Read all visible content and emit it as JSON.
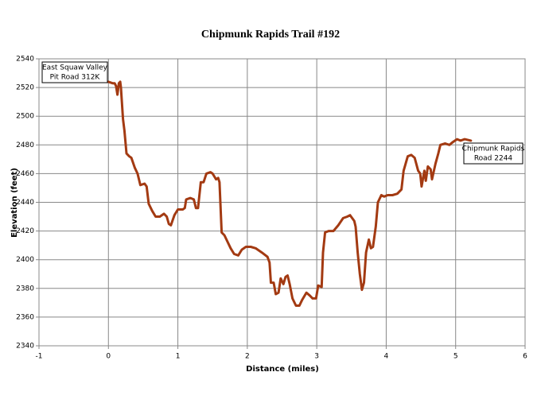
{
  "chart_data": {
    "type": "line",
    "title": "Chipmunk Rapids Trail #192",
    "x_label": "Distance (miles)",
    "y_label": "Elevation (feet)",
    "x": [
      0,
      0.06,
      0.09,
      0.11,
      0.13,
      0.15,
      0.17,
      0.18,
      0.21,
      0.23,
      0.26,
      0.3,
      0.33,
      0.38,
      0.42,
      0.46,
      0.52,
      0.55,
      0.58,
      0.63,
      0.68,
      0.74,
      0.8,
      0.84,
      0.87,
      0.9,
      0.95,
      1.0,
      1.07,
      1.1,
      1.12,
      1.18,
      1.23,
      1.26,
      1.29,
      1.33,
      1.37,
      1.41,
      1.47,
      1.5,
      1.55,
      1.58,
      1.6,
      1.63,
      1.67,
      1.72,
      1.76,
      1.81,
      1.87,
      1.92,
      1.98,
      2.05,
      2.12,
      2.21,
      2.29,
      2.32,
      2.34,
      2.38,
      2.41,
      2.45,
      2.48,
      2.52,
      2.55,
      2.58,
      2.61,
      2.65,
      2.7,
      2.75,
      2.79,
      2.85,
      2.9,
      2.94,
      2.99,
      3.02,
      3.07,
      3.09,
      3.12,
      3.17,
      3.24,
      3.31,
      3.38,
      3.44,
      3.48,
      3.54,
      3.56,
      3.59,
      3.62,
      3.65,
      3.68,
      3.71,
      3.75,
      3.78,
      3.81,
      3.85,
      3.88,
      3.93,
      3.97,
      4.02,
      4.09,
      4.16,
      4.22,
      4.25,
      4.31,
      4.36,
      4.41,
      4.46,
      4.49,
      4.51,
      4.55,
      4.57,
      4.6,
      4.64,
      4.66,
      4.71,
      4.75,
      4.78,
      4.85,
      4.91,
      4.96,
      5.02,
      5.07,
      5.13,
      5.22
    ],
    "values": [
      2524,
      2523,
      2523,
      2521,
      2515,
      2523,
      2524,
      2520,
      2498,
      2490,
      2474,
      2472,
      2471,
      2464,
      2460,
      2452,
      2453,
      2451,
      2439,
      2434,
      2430,
      2430,
      2432,
      2430,
      2425,
      2424,
      2431,
      2435,
      2435,
      2436,
      2442,
      2443,
      2442,
      2436,
      2436,
      2454,
      2454,
      2460,
      2461,
      2460,
      2456,
      2457,
      2454,
      2419,
      2417,
      2412,
      2408,
      2404,
      2403,
      2407,
      2409,
      2409,
      2408,
      2405,
      2402,
      2398,
      2384,
      2384,
      2376,
      2377,
      2387,
      2383,
      2388,
      2389,
      2383,
      2373,
      2368,
      2368,
      2372,
      2377,
      2375,
      2373,
      2373,
      2382,
      2381,
      2405,
      2419,
      2420,
      2420,
      2424,
      2429,
      2430,
      2431,
      2427,
      2423,
      2405,
      2390,
      2379,
      2384,
      2405,
      2414,
      2408,
      2409,
      2423,
      2440,
      2445,
      2444,
      2445,
      2445,
      2446,
      2449,
      2462,
      2472,
      2473,
      2471,
      2462,
      2460,
      2451,
      2462,
      2455,
      2465,
      2463,
      2456,
      2467,
      2474,
      2480,
      2481,
      2480,
      2482,
      2484,
      2483,
      2484,
      2483
    ],
    "color": "#a33a12",
    "xlim": [
      -1,
      6
    ],
    "xticks": [
      -1,
      0,
      1,
      2,
      3,
      4,
      5,
      6
    ],
    "ylim": [
      2340,
      2540
    ],
    "yticks": [
      2340,
      2360,
      2380,
      2400,
      2420,
      2440,
      2460,
      2480,
      2500,
      2520,
      2540
    ],
    "grid": true,
    "annotations": [
      [
        "East Squaw Valley",
        "Pit Road 312K"
      ],
      [
        "Chipmunk Rapids",
        "Road 2244"
      ]
    ]
  }
}
